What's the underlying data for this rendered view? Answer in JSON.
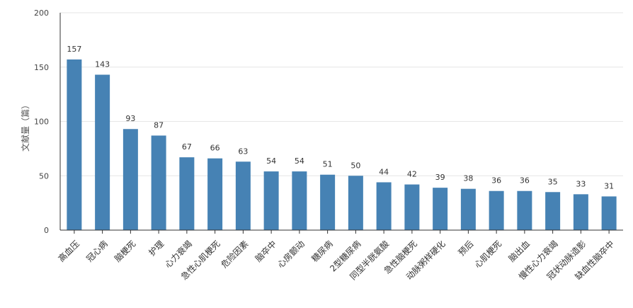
{
  "chart_data": {
    "type": "bar",
    "ylabel": "文献量（篇）",
    "ylim": [
      0,
      200
    ],
    "yticks": [
      0,
      50,
      100,
      150,
      200
    ],
    "grid": true,
    "bar_color": "#4682b4",
    "categories": [
      "高血压",
      "冠心病",
      "脑梗死",
      "护理",
      "心力衰竭",
      "急性心肌梗死",
      "危险因素",
      "脑卒中",
      "心房颤动",
      "糖尿病",
      "2型糖尿病",
      "同型半胱氨酸",
      "急性脑梗死",
      "动脉粥样硬化",
      "预后",
      "心肌梗死",
      "脑出血",
      "慢性心力衰竭",
      "冠状动脉造影",
      "缺血性脑卒中"
    ],
    "values": [
      157,
      143,
      93,
      87,
      67,
      66,
      63,
      54,
      54,
      51,
      50,
      44,
      42,
      39,
      38,
      36,
      36,
      35,
      33,
      31
    ]
  }
}
